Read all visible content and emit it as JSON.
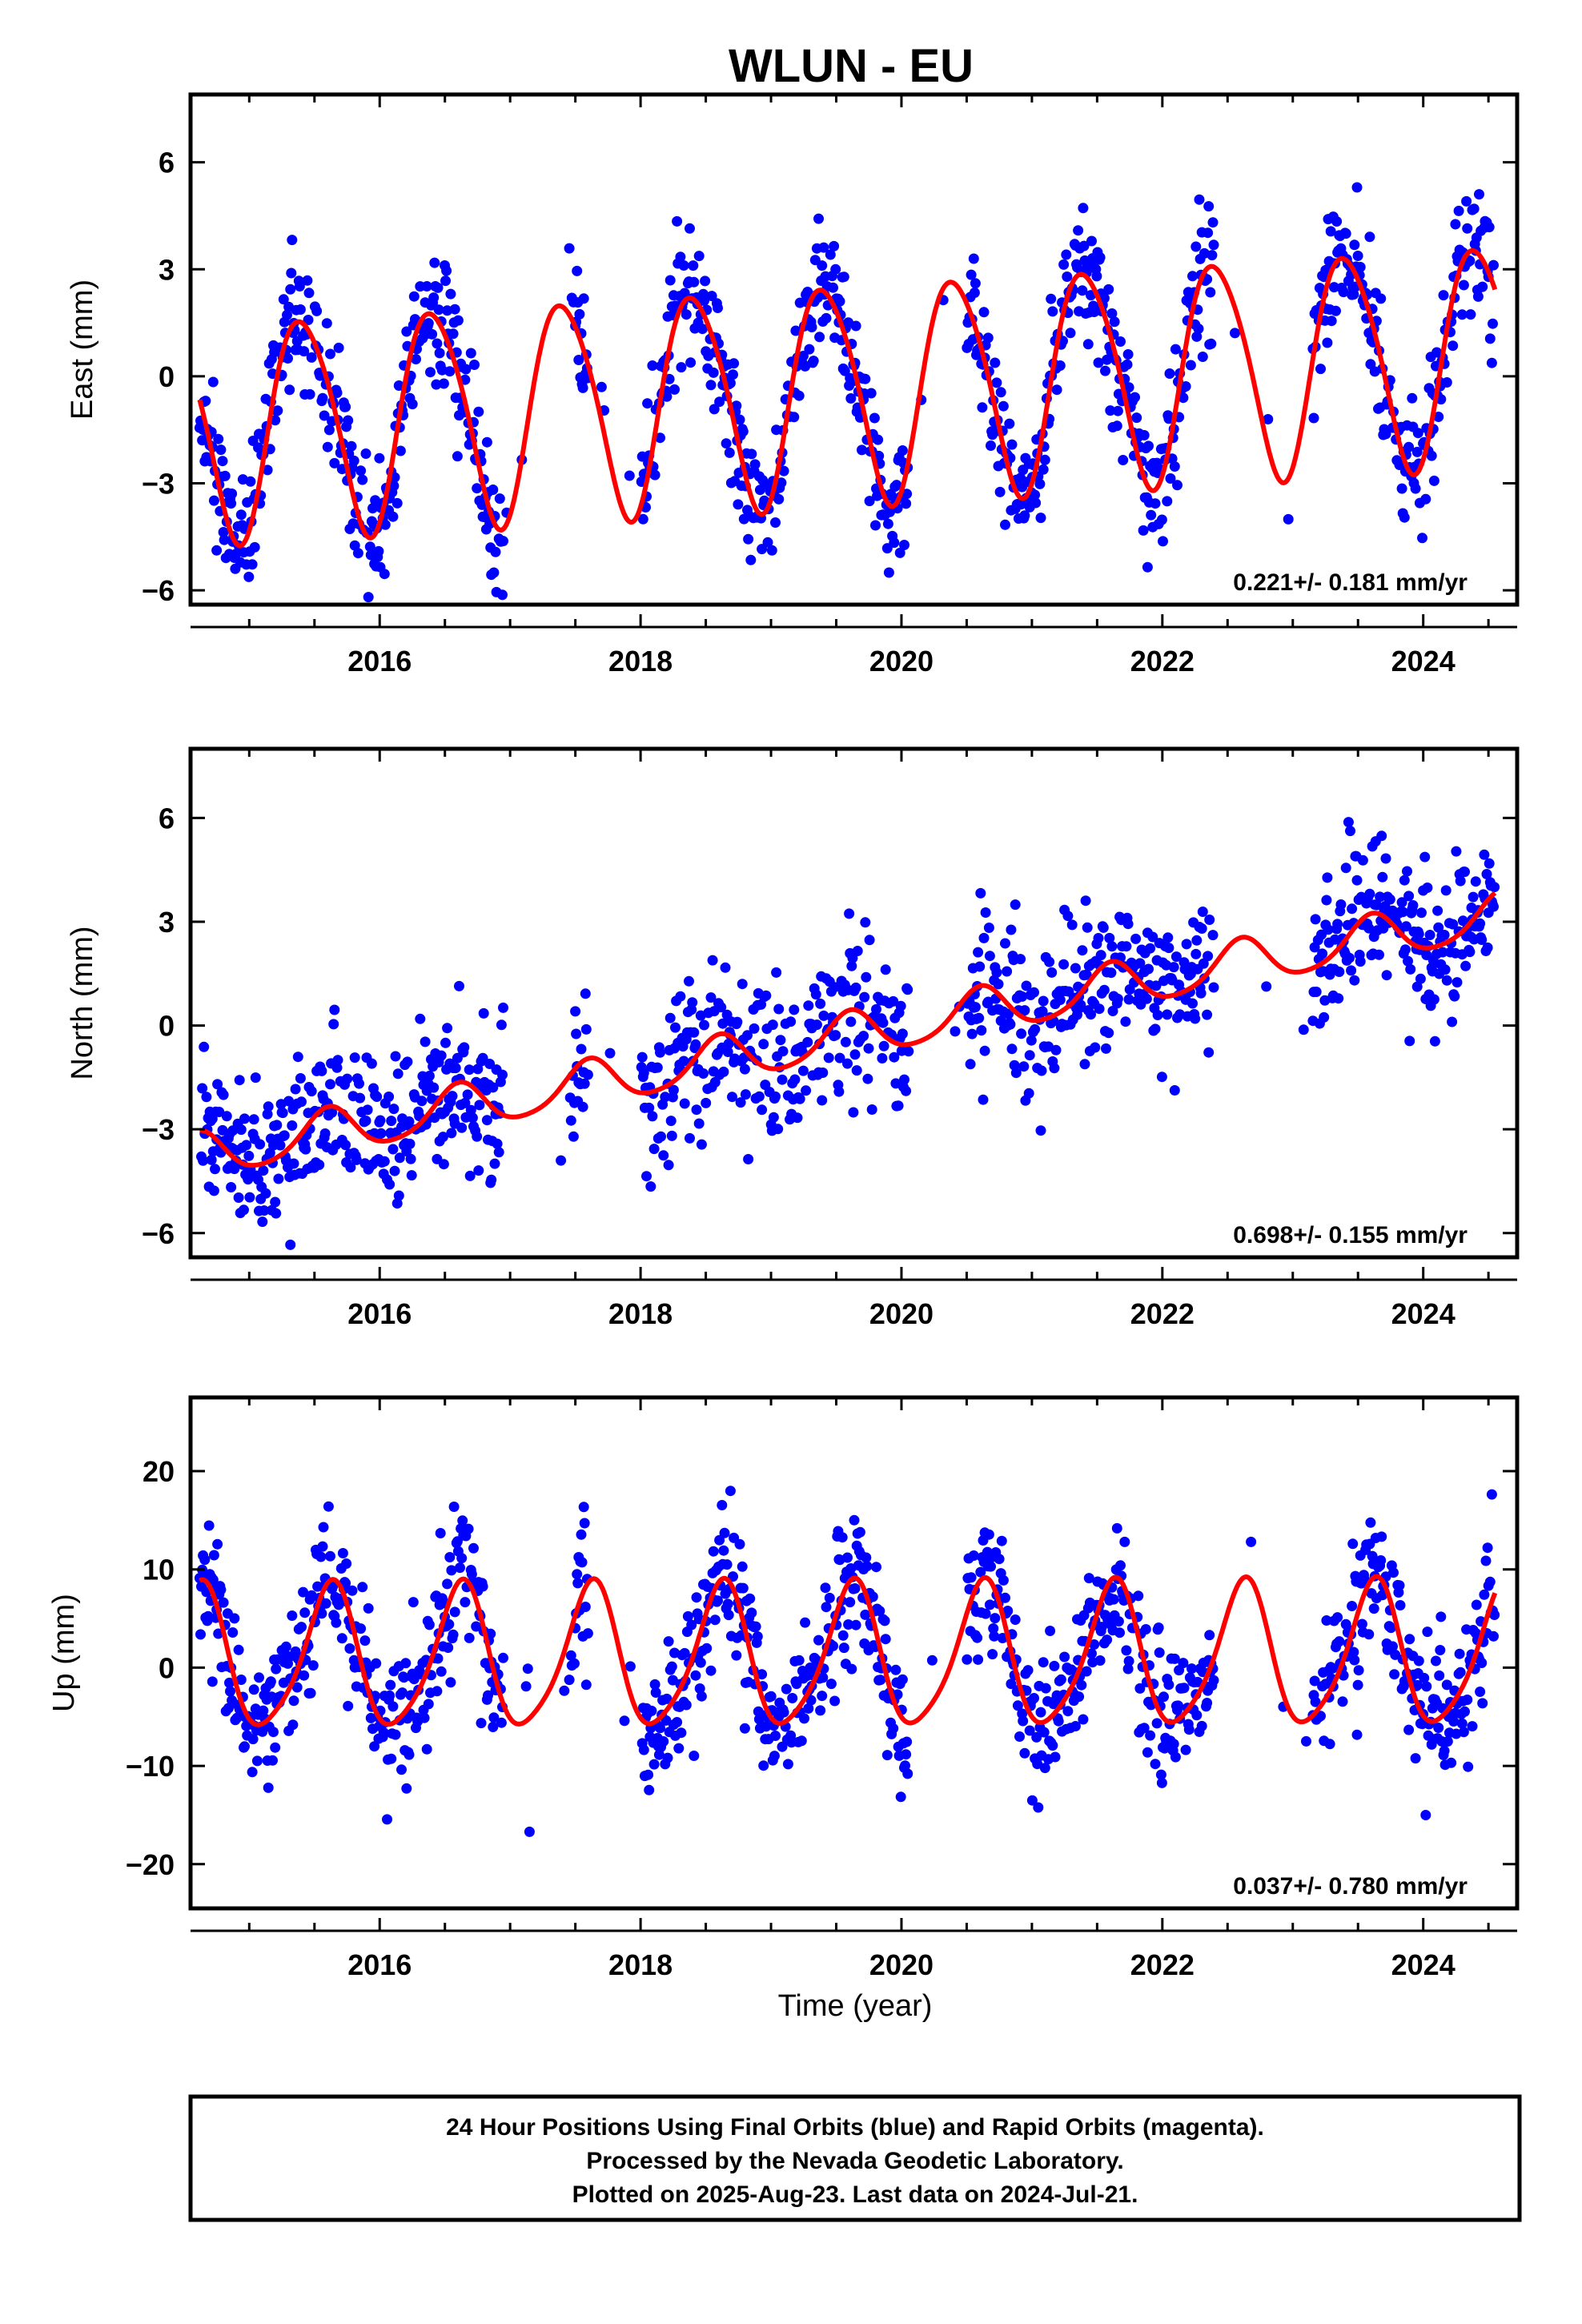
{
  "chart_data": {
    "type": "scatter",
    "title": "WLUN - EU",
    "xlabel": "Time (year)",
    "xlim": [
      2014.55,
      2024.72
    ],
    "x_ticks": [
      2016,
      2018,
      2020,
      2022,
      2024
    ],
    "series_colors": {
      "data": "#0000ff",
      "model": "#ff0000"
    },
    "panels": [
      {
        "name": "east",
        "ylabel": "East (mm)",
        "ylim": [
          -6.4,
          7.9
        ],
        "y_ticks": [
          -6,
          -3,
          0,
          3,
          6
        ],
        "rate_label": "0.221+/- 0.181 mm/yr",
        "model": {
          "offset": -0.4,
          "trend": 0.221,
          "amp_annual": 3.05,
          "phase_annual": 0.16,
          "amp_semi": 0.35,
          "phase_semi": 0.1
        },
        "noise_sd": 0.9,
        "seed": 11
      },
      {
        "name": "north",
        "ylabel": "North (mm)",
        "ylim": [
          -6.7,
          8.0
        ],
        "y_ticks": [
          -6,
          -3,
          0,
          3,
          6
        ],
        "rate_label": "0.698+/- 0.155 mm/yr",
        "model": {
          "offset": -0.3,
          "trend": 0.698,
          "amp_annual": 0.65,
          "phase_annual": 0.35,
          "amp_semi": 0.1,
          "phase_semi": 0.0
        },
        "noise_sd": 1.1,
        "seed": 23
      },
      {
        "name": "up",
        "ylabel": "Up (mm)",
        "ylim": [
          -24.5,
          27.5
        ],
        "y_ticks": [
          -20,
          -10,
          0,
          10,
          20
        ],
        "rate_label": "0.037+/- 0.780 mm/yr",
        "model": {
          "offset": 0.9,
          "trend": 0.037,
          "amp_annual": 7.2,
          "phase_annual": 0.37,
          "amp_semi": 1.2,
          "phase_semi": 0.05
        },
        "noise_sd": 3.6,
        "seed": 37
      }
    ],
    "data_gaps": [
      [
        2016.95,
        2017.45
      ],
      [
        2017.6,
        2018.0
      ],
      [
        2020.05,
        2020.5
      ],
      [
        2022.4,
        2023.15
      ]
    ]
  },
  "footer": {
    "line1": "24 Hour Positions Using Final Orbits (blue) and Rapid Orbits (magenta).",
    "line2": "Processed by the Nevada Geodetic Laboratory.",
    "line3": "Plotted on 2025-Aug-23. Last data on 2024-Jul-21."
  }
}
